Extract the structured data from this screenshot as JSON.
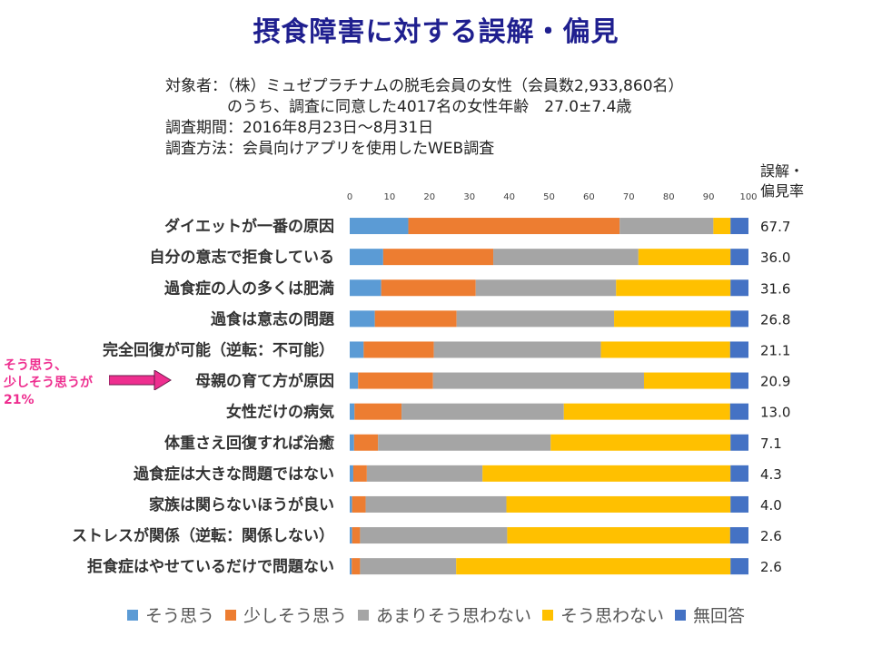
{
  "page": {
    "title": "摂食障害に対する誤解・偏見",
    "info_lines": [
      "対象者：（株）ミュゼプラチナムの脱毛会員の女性（会員数2,933,860名）",
      "　　　　のうち、調査に同意した4017名の女性年齢　27.0±7.4歳",
      "調査期間：2016年8月23日～8月31日",
      "調査方法：会員向けアプリを使用したWEB調査"
    ],
    "rate_header": [
      "誤解・",
      "偏見率"
    ],
    "annotation": [
      "そう思う、",
      "少しそう思うが",
      "21%"
    ],
    "annotation_color": "#ee2e8f"
  },
  "chart_data": {
    "type": "bar",
    "orientation": "horizontal",
    "stacked": true,
    "xlim": [
      0,
      100
    ],
    "xticks": [
      0,
      10,
      20,
      30,
      40,
      50,
      60,
      70,
      80,
      90,
      100
    ],
    "categories": [
      "ダイエットが一番の原因",
      "自分の意志で拒食している",
      "過食症の人の多くは肥満",
      "過食は意志の問題",
      "完全回復が可能（逆転：不可能）",
      "母親の育て方が原因",
      "女性だけの病気",
      "体重さえ回復すれば治癒",
      "過食症は大きな問題ではない",
      "家族は関らないほうが良い",
      "ストレスが関係（逆転：関係しない）",
      "拒食症はやせているだけで問題ない"
    ],
    "series": [
      {
        "name": "そう思う",
        "color": "#5b9bd5",
        "values": [
          14.7,
          8.4,
          7.9,
          6.3,
          3.5,
          2.1,
          1.2,
          1.1,
          0.9,
          0.6,
          0.6,
          0.5
        ]
      },
      {
        "name": "少しそう思う",
        "color": "#ed7d31",
        "values": [
          53.0,
          27.6,
          23.7,
          20.5,
          17.6,
          18.8,
          11.8,
          6.0,
          3.4,
          3.4,
          2.0,
          2.1
        ]
      },
      {
        "name": "あまりそう思わない",
        "color": "#a5a5a5",
        "values": [
          23.5,
          36.4,
          35.2,
          39.5,
          41.9,
          52.9,
          40.7,
          43.3,
          29.0,
          35.3,
          36.9,
          24.1
        ]
      },
      {
        "name": "そう思わない",
        "color": "#ffc000",
        "values": [
          4.3,
          23.1,
          28.7,
          29.2,
          32.4,
          21.7,
          41.7,
          45.1,
          62.2,
          56.2,
          55.9,
          68.8
        ]
      },
      {
        "name": "無回答",
        "color": "#4472c4",
        "values": [
          4.5,
          4.5,
          4.5,
          4.5,
          4.6,
          4.5,
          4.6,
          4.5,
          4.5,
          4.5,
          4.6,
          4.5
        ]
      }
    ],
    "rates": [
      "67.7",
      "36.0",
      "31.6",
      "26.8",
      "21.1",
      "20.9",
      "13.0",
      "7.1",
      "4.3",
      "4.0",
      "2.6",
      "2.6"
    ],
    "legend_position": "bottom",
    "grid": false
  }
}
